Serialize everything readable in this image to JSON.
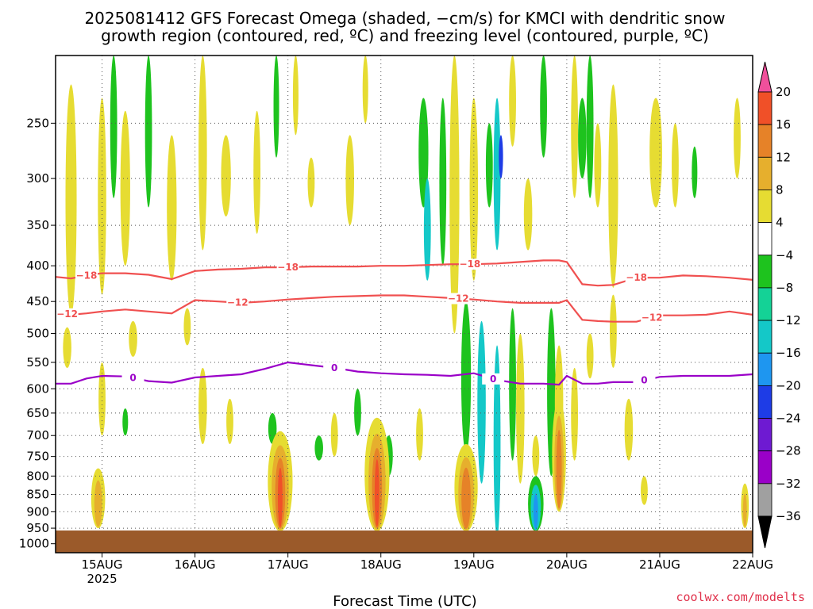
{
  "title_line1": "2025081412 GFS Forecast Omega (shaded, −cm/s) for KMCI with dendritic snow",
  "title_line2": "growth region (contoured, red, ºC) and freezing level (contoured, purple, ºC)",
  "watermark": "coolwx.com/modelts",
  "chart_data": {
    "type": "heatmap",
    "xlabel": "Forecast Time (UTC)",
    "ylabel": "",
    "x_ticks": [
      "15AUG",
      "16AUG",
      "17AUG",
      "18AUG",
      "19AUG",
      "20AUG",
      "21AUG",
      "22AUG"
    ],
    "x_tick_hours": [
      12,
      36,
      60,
      84,
      108,
      132,
      156,
      180
    ],
    "x_sub_label": "2025",
    "xlim_hours": [
      0,
      180
    ],
    "y_ticks": [
      250,
      300,
      350,
      400,
      450,
      500,
      550,
      600,
      650,
      700,
      750,
      800,
      850,
      900,
      950,
      1000
    ],
    "ylim_hpa": [
      200,
      1030
    ],
    "y_scale": "log-pressure",
    "grid": true,
    "colorbar": {
      "levels": [
        -36,
        -32,
        -28,
        -24,
        -20,
        -16,
        -12,
        -8,
        -4,
        4,
        8,
        12,
        16,
        20
      ],
      "labels": [
        "20",
        "16",
        "12",
        "8",
        "4",
        "−4",
        "−8",
        "−12",
        "−16",
        "−20",
        "−24",
        "−28",
        "−32",
        "−36"
      ],
      "colors": [
        "#a0a0a0",
        "#9a00c8",
        "#6e1ad2",
        "#1e3ce6",
        "#1e96f0",
        "#14c8c8",
        "#14d296",
        "#1ec31e",
        "#ffffff",
        "#e6dc32",
        "#e6af2d",
        "#e68228",
        "#f05028",
        "#f0509b",
        "#000000"
      ]
    },
    "contours": [
      {
        "name": "-18",
        "color": "#f05050",
        "label": "−18",
        "hours": [
          0,
          4,
          8,
          12,
          18,
          24,
          30,
          36,
          42,
          48,
          54,
          60,
          66,
          72,
          78,
          84,
          90,
          96,
          102,
          108,
          114,
          120,
          126,
          130,
          132,
          136,
          140,
          144,
          150,
          156,
          162,
          168,
          174,
          180
        ],
        "hpa": [
          415,
          417,
          413,
          410,
          410,
          412,
          418,
          407,
          405,
          404,
          402,
          402,
          401,
          401,
          401,
          400,
          400,
          399,
          398,
          398,
          397,
          395,
          393,
          393,
          395,
          425,
          427,
          426,
          416,
          416,
          413,
          414,
          416,
          419
        ],
        "label_hours": [
          8,
          60,
          107,
          150
        ]
      },
      {
        "name": "-12",
        "color": "#f05050",
        "label": "−12",
        "hours": [
          0,
          4,
          8,
          12,
          18,
          24,
          30,
          36,
          42,
          48,
          54,
          60,
          66,
          72,
          78,
          84,
          90,
          96,
          102,
          108,
          114,
          120,
          126,
          130,
          132,
          136,
          140,
          144,
          150,
          156,
          162,
          168,
          174,
          180
        ],
        "hpa": [
          465,
          470,
          468,
          465,
          462,
          465,
          468,
          448,
          450,
          452,
          450,
          447,
          445,
          443,
          442,
          441,
          441,
          443,
          445,
          447,
          450,
          452,
          452,
          452,
          448,
          478,
          480,
          481,
          481,
          471,
          471,
          470,
          465,
          470
        ],
        "label_hours": [
          3,
          47,
          104,
          154
        ]
      },
      {
        "name": "0",
        "color": "#9a00c8",
        "label": "0",
        "hours": [
          0,
          4,
          8,
          12,
          18,
          24,
          30,
          36,
          42,
          48,
          54,
          60,
          66,
          72,
          78,
          84,
          90,
          96,
          102,
          108,
          114,
          120,
          126,
          130,
          132,
          136,
          140,
          144,
          150,
          156,
          162,
          168,
          174,
          180
        ],
        "hpa": [
          590,
          590,
          580,
          575,
          576,
          585,
          588,
          578,
          575,
          572,
          562,
          550,
          555,
          560,
          567,
          570,
          572,
          573,
          575,
          570,
          583,
          590,
          590,
          592,
          575,
          590,
          590,
          587,
          587,
          577,
          575,
          575,
          575,
          572
        ],
        "label_hours": [
          20,
          72,
          113,
          152
        ]
      }
    ]
  }
}
